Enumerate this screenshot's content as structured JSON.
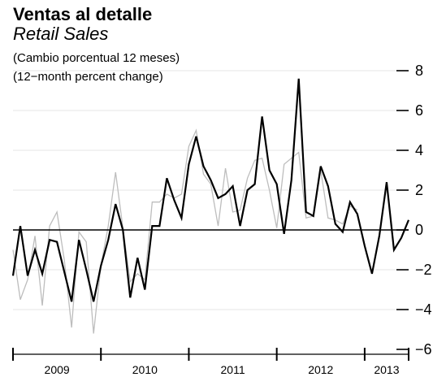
{
  "chart_data": {
    "type": "line",
    "title": "Ventas al detalle",
    "subtitle": "Retail Sales",
    "notes": [
      "(Cambio porcentual 12 meses)",
      "(12−month percent change)"
    ],
    "ylim": [
      -6,
      8
    ],
    "yticks": [
      {
        "value": 8,
        "label": "8"
      },
      {
        "value": 6,
        "label": "6"
      },
      {
        "value": 4,
        "label": "4"
      },
      {
        "value": 2,
        "label": "2"
      },
      {
        "value": 0,
        "label": "0"
      },
      {
        "value": -2,
        "label": "−2"
      },
      {
        "value": -4,
        "label": "−4"
      },
      {
        "value": -6,
        "label": "−6"
      }
    ],
    "x_start": "2009-01",
    "x_end": "2013-07",
    "years": [
      "2009",
      "2010",
      "2011",
      "2012",
      "2013"
    ],
    "grid": true,
    "colors": {
      "primary": "#000000",
      "secondary": "#bdbdbd",
      "grid": "#e6e6e6"
    },
    "series": [
      {
        "values": [
          -2.3,
          0.2,
          -2.3,
          -1.0,
          -2.2,
          -0.5,
          -0.6,
          -2.1,
          -3.6,
          -0.5,
          -2.0,
          -3.6,
          -1.8,
          -0.5,
          1.3,
          0.0,
          -3.4,
          -1.4,
          -3.0,
          0.2,
          0.2,
          2.6,
          1.5,
          0.6,
          3.3,
          4.7,
          3.2,
          2.5,
          1.6,
          1.8,
          2.2,
          0.2,
          2.0,
          2.3,
          5.7,
          3.0,
          2.3,
          -0.2,
          2.5,
          7.6,
          0.9,
          0.7,
          3.2,
          2.2,
          0.3,
          -0.1,
          1.4,
          0.8,
          -0.8,
          -2.2,
          -0.3,
          2.4,
          -1.0,
          -0.4,
          0.5
        ]
      },
      {
        "values": [
          -1.0,
          -3.5,
          -2.5,
          -0.3,
          -3.8,
          0.2,
          0.9,
          -1.5,
          -4.9,
          -0.1,
          -0.6,
          -5.2,
          -1.8,
          0.2,
          2.9,
          0.1,
          -2.6,
          -2.2,
          -2.5,
          1.4,
          1.4,
          1.8,
          1.6,
          1.8,
          4.2,
          5.0,
          2.8,
          2.3,
          0.2,
          3.1,
          0.9,
          1.0,
          2.6,
          3.5,
          3.6,
          2.0,
          0.1,
          3.3,
          3.6,
          3.9,
          0.6,
          0.7,
          3.0,
          0.6,
          0.5,
          0.3,
          1.2,
          1.0
        ]
      }
    ]
  }
}
